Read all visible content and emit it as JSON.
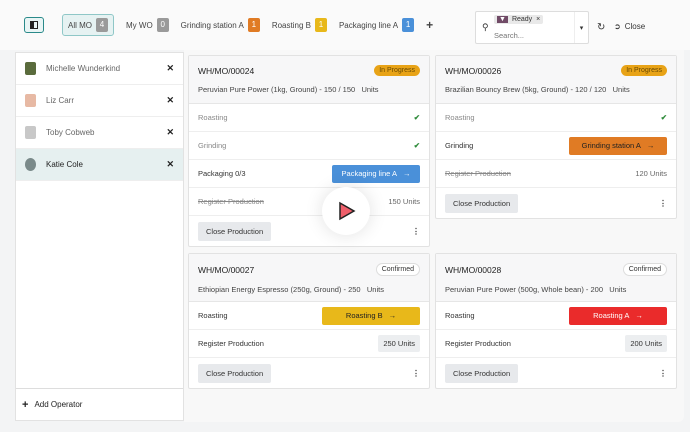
{
  "topbar": {
    "filters": [
      {
        "label": "All MO",
        "count": "4",
        "color": "#9a9a9a"
      },
      {
        "label": "My WO",
        "count": "0",
        "color": "#9a9a9a"
      },
      {
        "label": "Grinding station A",
        "count": "1",
        "color": "#e07b24"
      },
      {
        "label": "Roasting B",
        "count": "1",
        "color": "#e8b81a"
      },
      {
        "label": "Packaging line A",
        "count": "1",
        "color": "#4a90d9"
      }
    ],
    "search": {
      "facet": "Ready",
      "placeholder": "Search..."
    },
    "close_label": "Close"
  },
  "operators": [
    {
      "name": "Michelle Wunderkind",
      "avatar_color": "#5a6b3c"
    },
    {
      "name": "Liz Carr",
      "avatar_color": "#e7b9a4"
    },
    {
      "name": "Toby Cobweb",
      "avatar_color": "#c8c8c8"
    },
    {
      "name": "Katie Cole",
      "avatar_color": "#7a8a8a",
      "selected": true
    }
  ],
  "add_operator": "Add Operator",
  "cards": [
    {
      "ref": "WH/MO/00024",
      "status": "In Progress",
      "desc": "Peruvian Pure Power (1kg, Ground) - 150 / 150",
      "unit": "Units",
      "rows": [
        {
          "label": "Roasting"
        },
        {
          "label": "Grinding"
        },
        {
          "label": "Packaging  0/3",
          "wc": "Packaging line A",
          "wc_color": "#4a90d9"
        },
        {
          "label": "Register Production",
          "qty": "150 Units"
        }
      ],
      "close": "Close Production"
    },
    {
      "ref": "WH/MO/00026",
      "status": "In Progress",
      "desc": "Brazilian Bouncy Brew (5kg, Ground) - 120 / 120",
      "unit": "Units",
      "rows": [
        {
          "label": "Roasting"
        },
        {
          "label": "Grinding",
          "wc": "Grinding station A",
          "wc_color": "#e07b24"
        },
        {
          "label": "Register Production",
          "qty": "120 Units"
        }
      ],
      "close": "Close Production"
    },
    {
      "ref": "WH/MO/00027",
      "status": "Confirmed",
      "desc": "Ethiopian Energy Espresso (250g, Ground) - 250",
      "unit": "Units",
      "rows": [
        {
          "label": "Roasting",
          "wc": "Roasting B",
          "wc_color": "#e8b81a"
        },
        {
          "label": "Register Production",
          "qty": "250 Units"
        }
      ],
      "close": "Close Production"
    },
    {
      "ref": "WH/MO/00028",
      "status": "Confirmed",
      "desc": "Peruvian Pure Power (500g, Whole bean) - 200",
      "unit": "Units",
      "rows": [
        {
          "label": "Roasting",
          "wc": "Roasting A",
          "wc_color": "#ea2b2b"
        },
        {
          "label": "Register Production",
          "qty": "200 Units"
        }
      ],
      "close": "Close Production"
    }
  ]
}
